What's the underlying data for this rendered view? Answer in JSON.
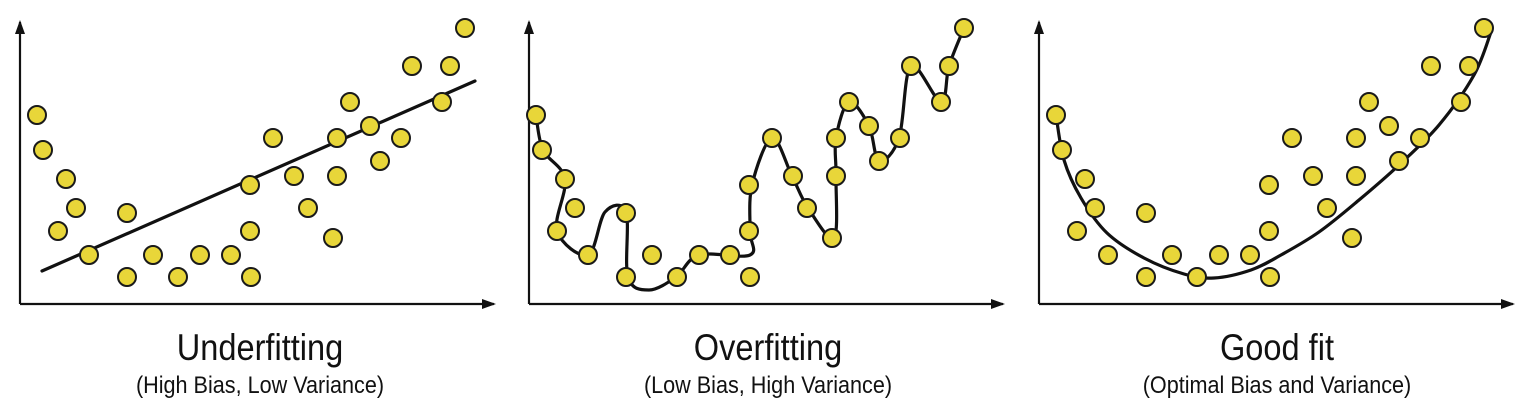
{
  "colors": {
    "point_fill": "#E8D639",
    "point_stroke": "#1a1a1a",
    "curve": "#111111",
    "axis": "#111111"
  },
  "panels": [
    {
      "id": "underfitting",
      "title": "Underfitting",
      "subtitle": "(High Bias, Low Variance)",
      "fit_type": "linear"
    },
    {
      "id": "overfitting",
      "title": "Overfitting",
      "subtitle": "(Low Bias, High Variance)",
      "fit_type": "interpolating-spline"
    },
    {
      "id": "good-fit",
      "title": "Good fit",
      "subtitle": "(Optimal Bias and Variance)",
      "fit_type": "quadratic"
    }
  ]
}
